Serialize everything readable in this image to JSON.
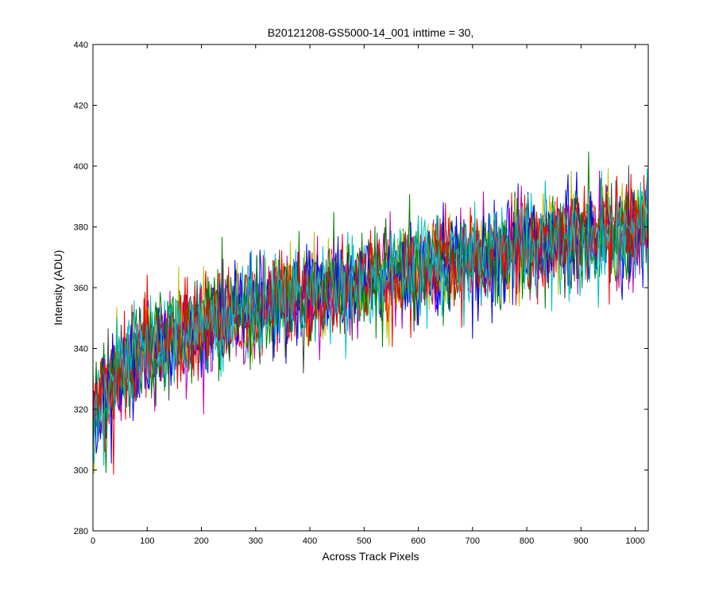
{
  "chart_data": {
    "type": "line",
    "title": "B20121208-GS5000-14_001 inttime = 30,",
    "xlabel": "Across Track Pixels",
    "ylabel": "Intensity (ADU)",
    "xlim": [
      0,
      1024
    ],
    "ylim": [
      280,
      440
    ],
    "xticks": [
      0,
      100,
      200,
      300,
      400,
      500,
      600,
      700,
      800,
      900,
      1000
    ],
    "yticks": [
      280,
      300,
      320,
      340,
      360,
      380,
      400,
      420,
      440
    ],
    "grid": false,
    "legend": "none",
    "trend": {
      "x": [
        0,
        50,
        100,
        200,
        300,
        400,
        500,
        600,
        700,
        800,
        900,
        1024
      ],
      "y": [
        318,
        333,
        340,
        347,
        353,
        358,
        362,
        366,
        370,
        374,
        377,
        379
      ],
      "noise_amplitude": 14
    },
    "series": [
      {
        "color": "#0000ff"
      },
      {
        "color": "#008000"
      },
      {
        "color": "#ff0000"
      },
      {
        "color": "#00bfbf"
      },
      {
        "color": "#bf00bf"
      },
      {
        "color": "#bfbf00"
      },
      {
        "color": "#404040"
      },
      {
        "color": "#0000ff"
      },
      {
        "color": "#008000"
      },
      {
        "color": "#ff0000"
      },
      {
        "color": "#00bfbf"
      }
    ]
  }
}
